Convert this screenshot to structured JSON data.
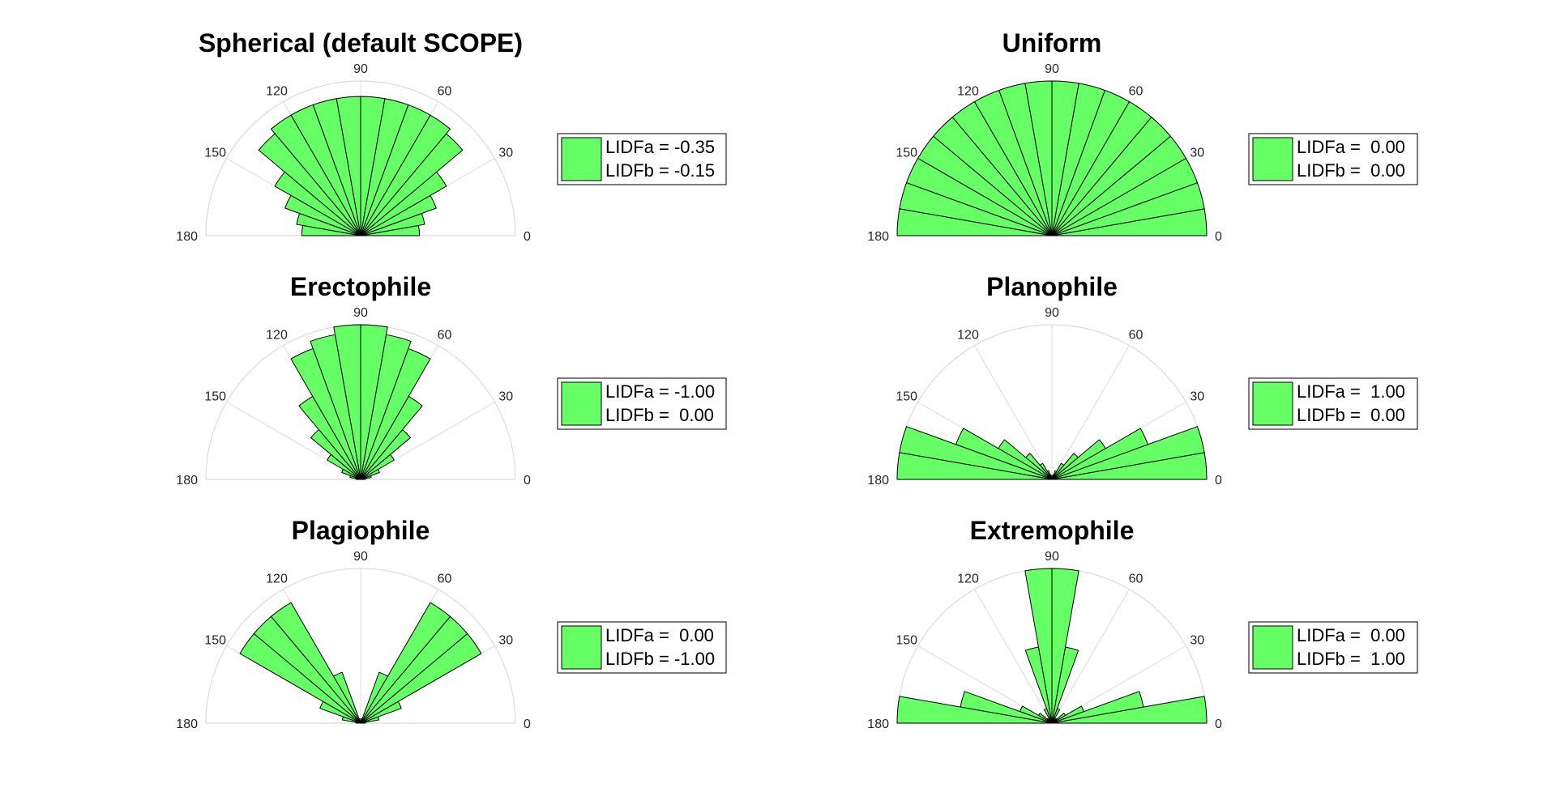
{
  "figure": {
    "colors": {
      "bar_fill": "#66ff66",
      "bar_edge": "#000000",
      "grid": "#dcdcdc",
      "tick_text": "#262626"
    }
  },
  "chart_data": [
    {
      "type": "polar-histogram",
      "title": "Spherical (default SCOPE)",
      "theta_range": [
        0,
        180
      ],
      "theta_ticks": [
        "0",
        "30",
        "60",
        "90",
        "120",
        "150",
        "180"
      ],
      "bin_centers_deg": [
        5,
        15,
        25,
        35,
        45,
        55,
        65,
        75,
        85,
        95,
        105,
        115,
        125,
        135,
        145,
        155,
        165,
        175
      ],
      "rmax": 1.0,
      "values": [
        0.38,
        0.42,
        0.52,
        0.64,
        0.86,
        0.9,
        0.9,
        0.9,
        0.9,
        0.9,
        0.9,
        0.9,
        0.9,
        0.86,
        0.64,
        0.52,
        0.42,
        0.38
      ],
      "legend": [
        "LIDFa = -0.35",
        "LIDFb = -0.15"
      ]
    },
    {
      "type": "polar-histogram",
      "title": "Uniform",
      "theta_range": [
        0,
        180
      ],
      "theta_ticks": [
        "0",
        "30",
        "60",
        "90",
        "120",
        "150",
        "180"
      ],
      "bin_centers_deg": [
        5,
        15,
        25,
        35,
        45,
        55,
        65,
        75,
        85,
        95,
        105,
        115,
        125,
        135,
        145,
        155,
        165,
        175
      ],
      "rmax": 1.0,
      "values": [
        1,
        1,
        1,
        1,
        1,
        1,
        1,
        1,
        1,
        1,
        1,
        1,
        1,
        1,
        1,
        1,
        1,
        1
      ],
      "legend": [
        "LIDFa =  0.00",
        "LIDFb =  0.00"
      ]
    },
    {
      "type": "polar-histogram",
      "title": "Erectophile",
      "theta_range": [
        0,
        180
      ],
      "theta_ticks": [
        "0",
        "30",
        "60",
        "90",
        "120",
        "150",
        "180"
      ],
      "bin_centers_deg": [
        5,
        15,
        25,
        35,
        45,
        55,
        65,
        75,
        85,
        95,
        105,
        115,
        125,
        135,
        145,
        155,
        165,
        175
      ],
      "rmax": 1.0,
      "values": [
        0.03,
        0.07,
        0.13,
        0.25,
        0.42,
        0.62,
        0.9,
        0.95,
        1.0,
        1.0,
        0.95,
        0.9,
        0.62,
        0.42,
        0.25,
        0.13,
        0.07,
        0.03
      ],
      "legend": [
        "LIDFa = -1.00",
        "LIDFb =  0.00"
      ]
    },
    {
      "type": "polar-histogram",
      "title": "Planophile",
      "theta_range": [
        0,
        180
      ],
      "theta_ticks": [
        "0",
        "30",
        "60",
        "90",
        "120",
        "150",
        "180"
      ],
      "bin_centers_deg": [
        5,
        15,
        25,
        35,
        45,
        55,
        65,
        75,
        85,
        95,
        105,
        115,
        125,
        135,
        145,
        155,
        165,
        175
      ],
      "rmax": 1.0,
      "values": [
        1.0,
        1.0,
        0.66,
        0.4,
        0.22,
        0.12,
        0.06,
        0.03,
        0.01,
        0.01,
        0.03,
        0.06,
        0.12,
        0.22,
        0.4,
        0.66,
        1.0,
        1.0
      ],
      "legend": [
        "LIDFa =  1.00",
        "LIDFb =  0.00"
      ]
    },
    {
      "type": "polar-histogram",
      "title": "Plagiophile",
      "theta_range": [
        0,
        180
      ],
      "theta_ticks": [
        "0",
        "30",
        "60",
        "90",
        "120",
        "150",
        "180"
      ],
      "bin_centers_deg": [
        5,
        15,
        25,
        35,
        45,
        55,
        65,
        75,
        85,
        95,
        105,
        115,
        125,
        135,
        145,
        155,
        165,
        175
      ],
      "rmax": 1.0,
      "values": [
        0.03,
        0.12,
        0.28,
        0.9,
        0.9,
        0.9,
        0.35,
        0.03,
        0.01,
        0.01,
        0.03,
        0.35,
        0.9,
        0.9,
        0.9,
        0.28,
        0.12,
        0.03
      ],
      "legend": [
        "LIDFa =  0.00",
        "LIDFb = -1.00"
      ]
    },
    {
      "type": "polar-histogram",
      "title": "Extremophile",
      "theta_range": [
        0,
        180
      ],
      "theta_ticks": [
        "0",
        "30",
        "60",
        "90",
        "120",
        "150",
        "180"
      ],
      "bin_centers_deg": [
        5,
        15,
        25,
        35,
        45,
        55,
        65,
        75,
        85,
        95,
        105,
        115,
        125,
        135,
        145,
        155,
        165,
        175
      ],
      "rmax": 1.0,
      "values": [
        1.0,
        0.6,
        0.22,
        0.1,
        0.04,
        0.03,
        0.1,
        0.5,
        1.0,
        1.0,
        0.5,
        0.1,
        0.03,
        0.04,
        0.1,
        0.22,
        0.6,
        1.0
      ],
      "legend": [
        "LIDFa =  0.00",
        "LIDFb =  1.00"
      ]
    }
  ]
}
